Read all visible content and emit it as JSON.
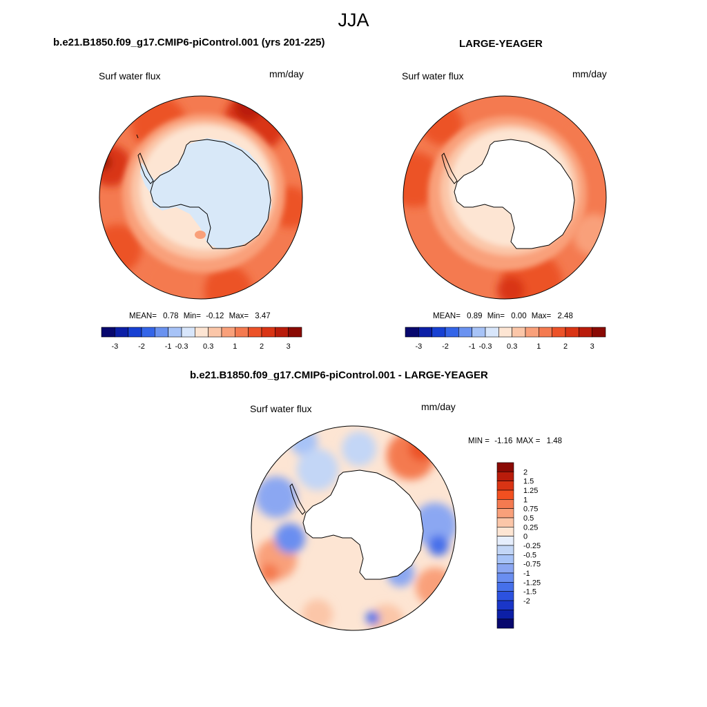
{
  "page": {
    "season": "JJA"
  },
  "panels": [
    {
      "title": "b.e21.B1850.f09_g17.CMIP6-piControl.001 (yrs 201-225)",
      "variable": "Surf water flux",
      "units": "mm/day",
      "stats": {
        "mean_label": "MEAN=",
        "mean": "0.78",
        "min_label": "Min=",
        "min": "-0.12",
        "max_label": "Max=",
        "max": "3.47"
      }
    },
    {
      "title": "LARGE-YEAGER",
      "variable": "Surf water flux",
      "units": "mm/day",
      "stats": {
        "mean_label": "MEAN=",
        "mean": "0.89",
        "min_label": "Min=",
        "min": "0.00",
        "max_label": "Max=",
        "max": "2.48"
      }
    },
    {
      "title": "b.e21.B1850.f09_g17.CMIP6-piControl.001 - LARGE-YEAGER",
      "variable": "Surf water flux",
      "units": "mm/day",
      "stats": {
        "min_label": "MIN =",
        "min": "-1.16",
        "max_label": "MAX =",
        "max": "1.48"
      }
    }
  ],
  "colorbar_top": {
    "colors": [
      "#08086e",
      "#0c1fa6",
      "#1740d2",
      "#3465e8",
      "#6a92f0",
      "#a7c3f7",
      "#d8e6fb",
      "#fde5d3",
      "#fbc6a8",
      "#f9a07a",
      "#f47a50",
      "#ec5228",
      "#d93414",
      "#b91c0b",
      "#8a0a04"
    ],
    "tick_labels": [
      "-3",
      "-2",
      "-1",
      "-0.3",
      "0.3",
      "1",
      "2",
      "3"
    ]
  },
  "colorbar_diff": {
    "colors": [
      "#8a0a04",
      "#b91c0b",
      "#d93414",
      "#f25020",
      "#f47a50",
      "#f9a07a",
      "#fbc6a8",
      "#fde5d3",
      "#e6eefc",
      "#c3d6f6",
      "#a7c3f7",
      "#8ba7f2",
      "#6a8ef0",
      "#4670ea",
      "#2c52e0",
      "#1a36c8",
      "#0c1fa6",
      "#08086e"
    ],
    "tick_labels": [
      "2",
      "1.5",
      "1.25",
      "1",
      "0.75",
      "0.5",
      "0.25",
      "0",
      "-0.25",
      "-0.5",
      "-0.75",
      "-1",
      "-1.25",
      "-1.5",
      "-2"
    ]
  },
  "map_colors": {
    "coast": "#000000",
    "ice_blue": "#d8e8f8",
    "land_white": "#ffffff"
  }
}
